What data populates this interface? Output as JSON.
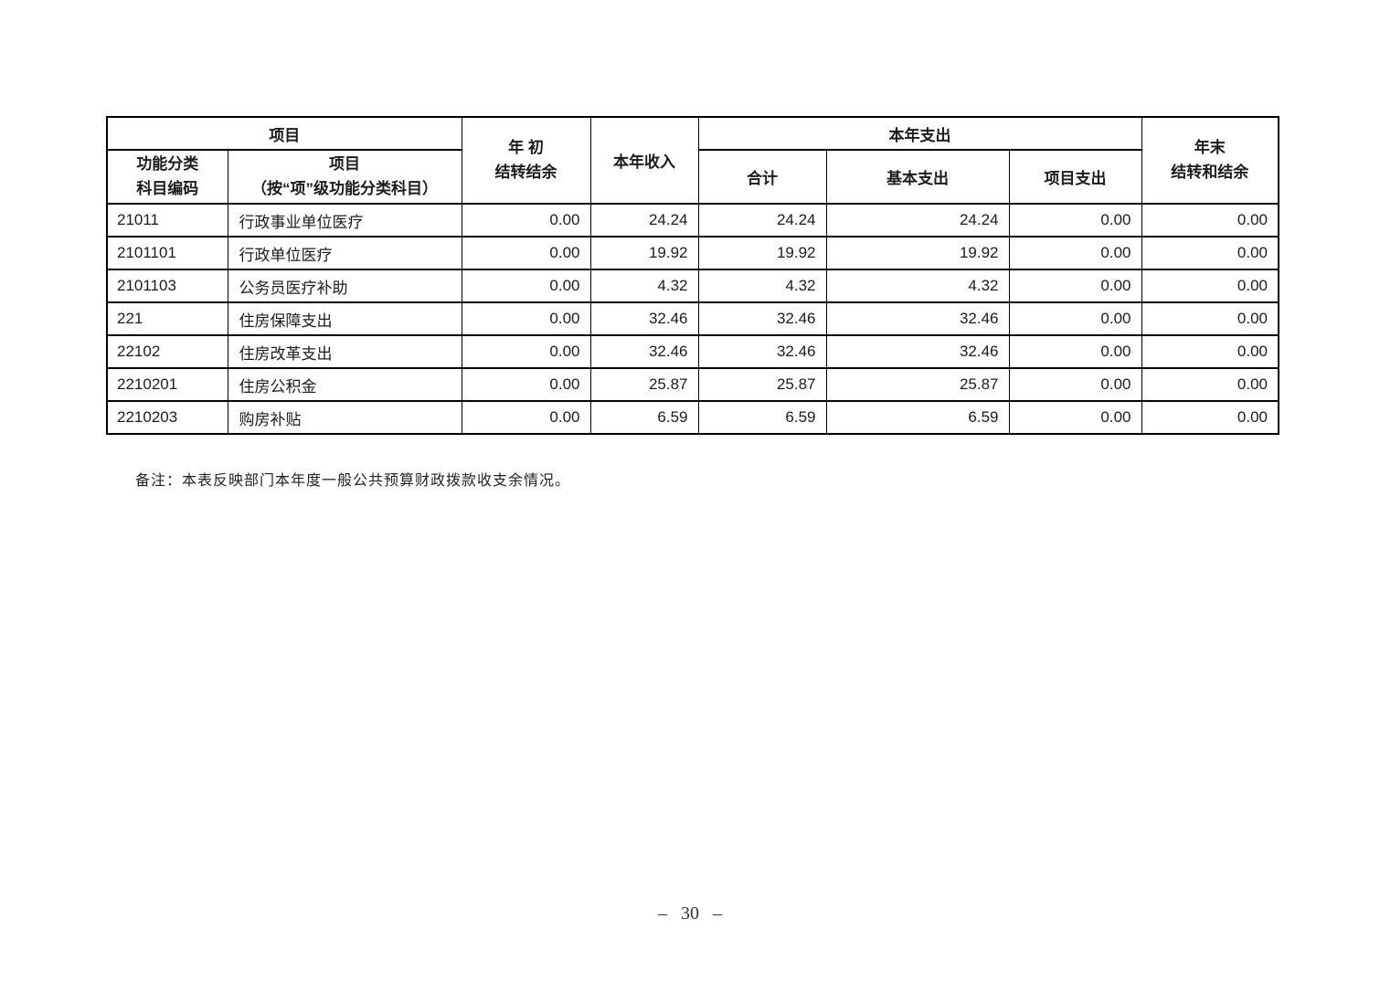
{
  "table": {
    "header": {
      "project_group": "项目",
      "code_line1": "功能分类",
      "code_line2": "科目编码",
      "name_line1": "项目",
      "name_line2": "（按“项”级功能分类科目）",
      "begin_line1": "年 初",
      "begin_line2": "结转结余",
      "income": "本年收入",
      "expenditure_group": "本年支出",
      "total": "合计",
      "basic": "基本支出",
      "project": "项目支出",
      "end_line1": "年末",
      "end_line2": "结转和结余"
    },
    "rows": [
      {
        "code": "21011",
        "name": "行政事业单位医疗",
        "begin": "0.00",
        "income": "24.24",
        "total": "24.24",
        "basic": "24.24",
        "project": "0.00",
        "end": "0.00"
      },
      {
        "code": "2101101",
        "name": "行政单位医疗",
        "begin": "0.00",
        "income": "19.92",
        "total": "19.92",
        "basic": "19.92",
        "project": "0.00",
        "end": "0.00"
      },
      {
        "code": "2101103",
        "name": "公务员医疗补助",
        "begin": "0.00",
        "income": "4.32",
        "total": "4.32",
        "basic": "4.32",
        "project": "0.00",
        "end": "0.00"
      },
      {
        "code": "221",
        "name": "住房保障支出",
        "begin": "0.00",
        "income": "32.46",
        "total": "32.46",
        "basic": "32.46",
        "project": "0.00",
        "end": "0.00"
      },
      {
        "code": "22102",
        "name": "住房改革支出",
        "begin": "0.00",
        "income": "32.46",
        "total": "32.46",
        "basic": "32.46",
        "project": "0.00",
        "end": "0.00"
      },
      {
        "code": "2210201",
        "name": "住房公积金",
        "begin": "0.00",
        "income": "25.87",
        "total": "25.87",
        "basic": "25.87",
        "project": "0.00",
        "end": "0.00"
      },
      {
        "code": "2210203",
        "name": "购房补贴",
        "begin": "0.00",
        "income": "6.59",
        "total": "6.59",
        "basic": "6.59",
        "project": "0.00",
        "end": "0.00"
      }
    ]
  },
  "note": "备注：本表反映部门本年度一般公共预算财政拨款收支余情况。",
  "page_number": "– 30 –"
}
